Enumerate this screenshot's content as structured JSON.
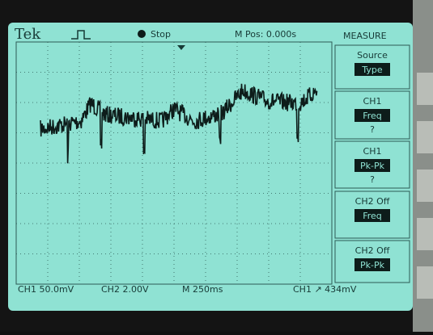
{
  "header": {
    "brand": "Tek",
    "status": "Stop",
    "position": "M Pos: 0.000s",
    "menu_title": "MEASURE"
  },
  "menu": [
    {
      "label": "Source",
      "value": "Type"
    },
    {
      "label": "CH1",
      "value": "Freq",
      "reading": "?"
    },
    {
      "label": "CH1",
      "value": "Pk-Pk",
      "reading": "?"
    },
    {
      "label": "CH2 Off",
      "value": "Freq"
    },
    {
      "label": "CH2 Off",
      "value": "Pk-Pk"
    }
  ],
  "footer": {
    "ch1_scale": "CH1 50.0mV",
    "ch2_scale": "CH2 2.00V",
    "timebase": "M 250ms",
    "trigger": "CH1 ↗ 434mV"
  }
}
